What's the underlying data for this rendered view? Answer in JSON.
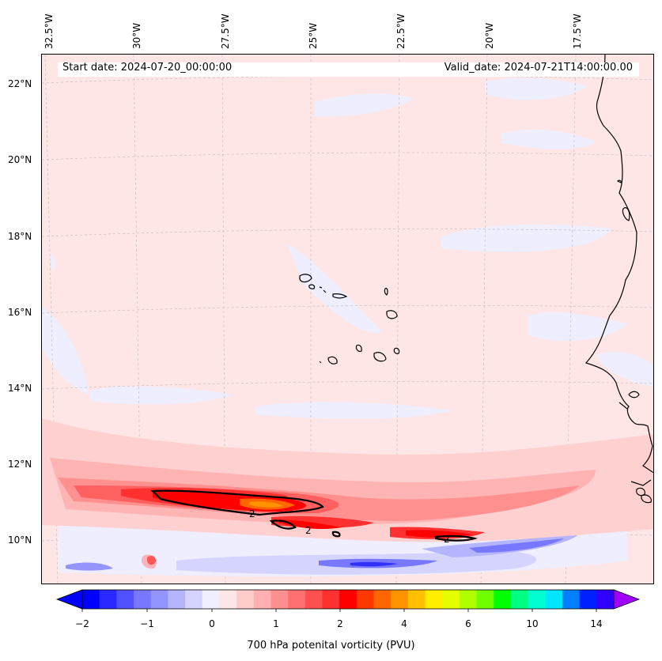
{
  "map": {
    "start_date": "Start date: 2024-07-20_00:00:00",
    "valid_date": "Valid_date: 2024-07-21T14:00:00.00",
    "lon_labels": [
      "32.5°W",
      "30°W",
      "27.5°W",
      "25°W",
      "22.5°W",
      "20°W",
      "17.5°W"
    ],
    "lat_labels": [
      "22°N",
      "20°N",
      "18°N",
      "16°N",
      "14°N",
      "12°N",
      "10°N"
    ],
    "contour_label": "2",
    "features": [
      "cabo-verde-islands",
      "west-african-coastline",
      "pv-maximum-band",
      "pv-minimum-band"
    ]
  },
  "colorbar": {
    "label": "700 hPa potenital vorticity (PVU)",
    "ticks": [
      "−2",
      "−1",
      "0",
      "1",
      "2",
      "4",
      "6",
      "10",
      "14"
    ],
    "colors": [
      "#0000ff",
      "#2828ff",
      "#5050ff",
      "#7878ff",
      "#9494ff",
      "#b4b4ff",
      "#d4d4ff",
      "#efefff",
      "#ffe6e6",
      "#ffcccc",
      "#ffb0b0",
      "#ff9090",
      "#ff7070",
      "#ff5050",
      "#ff3030",
      "#ff0000",
      "#ff3800",
      "#ff6600",
      "#ff9400",
      "#ffc000",
      "#ffee00",
      "#e4ff00",
      "#b0ff00",
      "#70ff00",
      "#00ff00",
      "#00ff80",
      "#00ffd0",
      "#00e6ff",
      "#0080ff",
      "#0020ff",
      "#3000ff",
      "#a000ff"
    ]
  },
  "colors": {
    "background_pv": "#ffe6e6",
    "low_pv": "#eeeeff",
    "high_pv": "#ff0000",
    "coastline": "#000000"
  }
}
